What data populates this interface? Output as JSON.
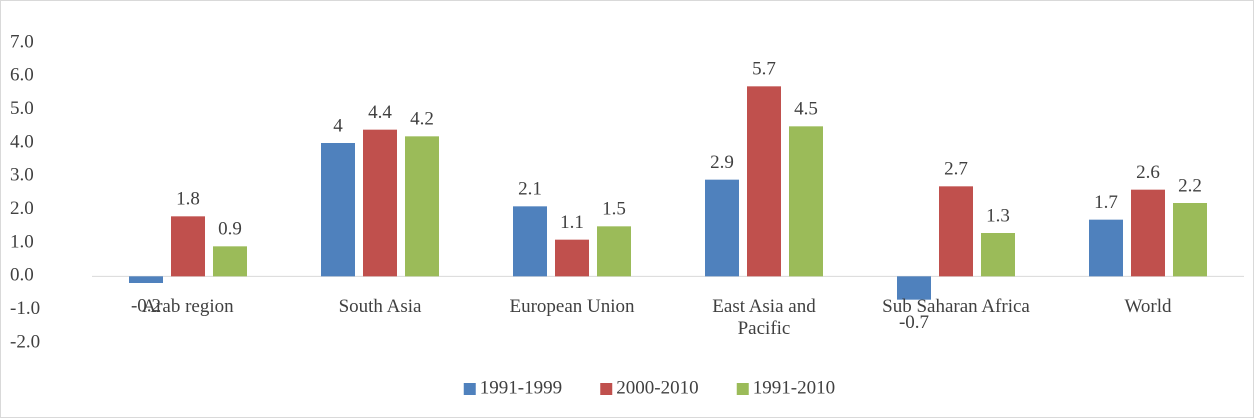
{
  "chart_data": {
    "type": "bar",
    "categories": [
      "Arab region",
      "South Asia",
      "European Union",
      "East Asia and Pacific",
      "Sub Saharan Africa",
      "World"
    ],
    "series": [
      {
        "name": "1991-1999",
        "color": "#4f81bd",
        "values": [
          -0.2,
          4,
          2.1,
          2.9,
          -0.7,
          1.7
        ]
      },
      {
        "name": "2000-2010",
        "color": "#c0504d",
        "values": [
          1.8,
          4.4,
          1.1,
          5.7,
          2.7,
          2.6
        ]
      },
      {
        "name": "1991-2010",
        "color": "#9bbb59",
        "values": [
          0.9,
          4.2,
          1.5,
          4.5,
          1.3,
          2.2
        ]
      }
    ],
    "ylim": [
      -2,
      7
    ],
    "yticks": [
      {
        "value": -2,
        "label": "-2.0"
      },
      {
        "value": -1,
        "label": "-1.0"
      },
      {
        "value": 0,
        "label": "0.0"
      },
      {
        "value": 1,
        "label": "1.0"
      },
      {
        "value": 2,
        "label": "2.0"
      },
      {
        "value": 3,
        "label": "3.0"
      },
      {
        "value": 4,
        "label": "4.0"
      },
      {
        "value": 5,
        "label": "5.0"
      },
      {
        "value": 6,
        "label": "6.0"
      },
      {
        "value": 7,
        "label": "7.0"
      }
    ],
    "legend": "bottom"
  }
}
